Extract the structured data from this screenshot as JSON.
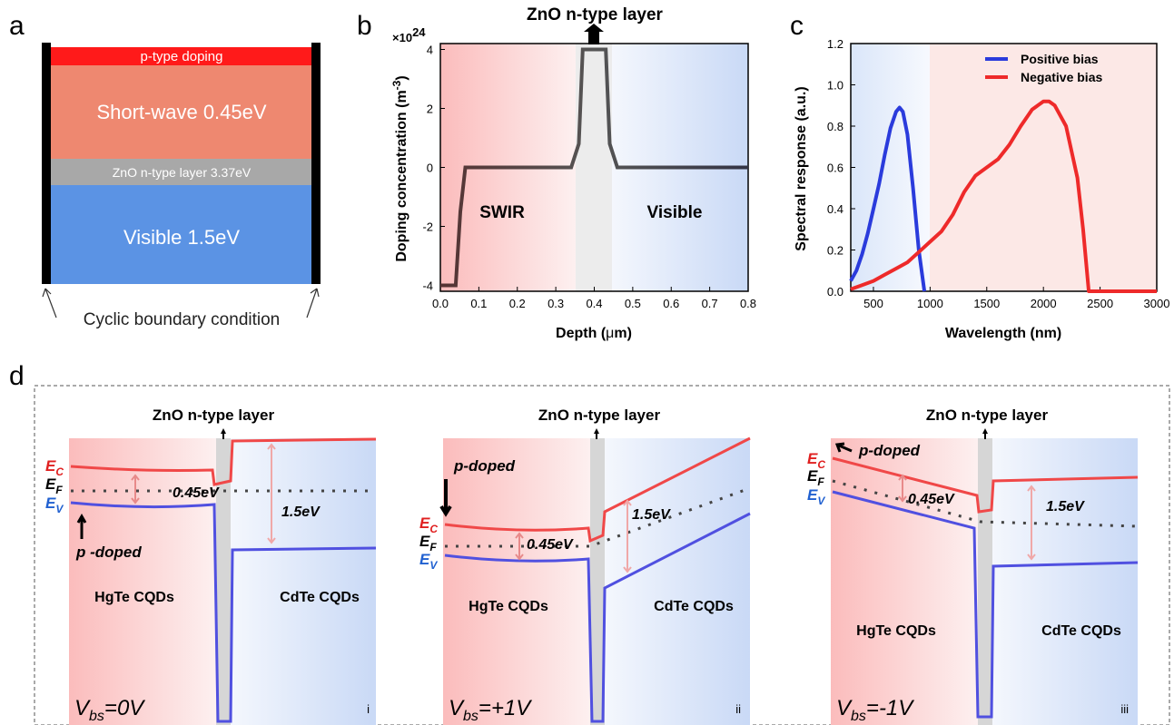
{
  "panels": {
    "a": {
      "label": "a",
      "layers": {
        "p_doping": "p-type doping",
        "short_wave": "Short-wave 0.45eV",
        "zno": "ZnO n-type layer 3.37eV",
        "visible": "Visible 1.5eV"
      },
      "caption": "Cyclic boundary condition",
      "colors": {
        "p_doping": "#ff1a1a",
        "short_wave": "#ee8870",
        "zno": "#a8a8a8",
        "visible": "#5b93e4",
        "boundary": "#000000"
      }
    },
    "b": {
      "label": "b",
      "top_annotation": "ZnO n-type layer",
      "region_left": "SWIR",
      "region_right": "Visible",
      "multiplier": "×10",
      "multiplier_exp": "24"
    },
    "c": {
      "label": "c"
    },
    "d": {
      "label": "d",
      "subpanels": [
        {
          "id": "i",
          "roman": "i",
          "title": "ZnO n-type layer",
          "vbs": "=0V",
          "left": "HgTe CQDs",
          "right": "CdTe CQDs",
          "gap_small": "0.45eV",
          "gap_large": "1.5eV",
          "pdoped": "p -doped"
        },
        {
          "id": "ii",
          "roman": "ii",
          "title": "ZnO n-type layer",
          "vbs": "=+1V",
          "left": "HgTe CQDs",
          "right": "CdTe CQDs",
          "gap_small": "0.45eV",
          "gap_large": "1.5eV",
          "pdoped": "p-doped"
        },
        {
          "id": "iii",
          "roman": "iii",
          "title": "ZnO n-type layer",
          "vbs": "=-1V",
          "left": "HgTe CQDs",
          "right": "CdTe CQDs",
          "gap_small": "0.45eV",
          "gap_large": "1.5eV",
          "pdoped": "p-doped"
        }
      ],
      "band_labels": {
        "ec": "E",
        "ec_sub": "C",
        "ef": "E",
        "ef_sub": "F",
        "ev": "E",
        "ev_sub": "V",
        "vbs": "V",
        "vbs_sub": "bs"
      },
      "colors": {
        "ec": "#f04848",
        "ev": "#5050e0",
        "ef": "#444444",
        "ec_label": "#e02020",
        "ev_label": "#2060d0"
      }
    }
  },
  "chart_data": [
    {
      "type": "line",
      "panel": "b",
      "xlabel": "Depth (μm)",
      "ylabel": "Doping concentration (m-3)",
      "xlim": [
        0.0,
        0.8
      ],
      "ylim": [
        -4.2,
        4.2
      ],
      "x_ticks": [
        0.0,
        0.1,
        0.2,
        0.3,
        0.4,
        0.5,
        0.6,
        0.7,
        0.8
      ],
      "y_ticks": [
        -4,
        -2,
        0,
        2,
        4
      ],
      "x_tick_labels": [
        "0.0",
        "0.1",
        "0.2",
        "0.3",
        "0.4",
        "0.5",
        "0.6",
        "0.7",
        "0.8"
      ],
      "y_tick_labels": [
        "-4",
        "-2",
        "0",
        "2",
        "4"
      ],
      "series": [
        {
          "x": [
            0.0,
            0.04,
            0.052,
            0.065,
            0.34,
            0.36,
            0.37,
            0.43,
            0.44,
            0.46,
            0.8
          ],
          "values": [
            -4,
            -4,
            -1.5,
            0,
            0,
            0.8,
            4,
            4,
            0.8,
            0,
            0
          ]
        }
      ],
      "grid": false
    },
    {
      "type": "line",
      "panel": "c",
      "xlabel": "Wavelength (nm)",
      "ylabel": "Spectral response (a.u.)",
      "xlim": [
        300,
        3000
      ],
      "ylim": [
        0.0,
        1.2
      ],
      "x_ticks": [
        500,
        1000,
        1500,
        2000,
        2500,
        3000
      ],
      "y_ticks": [
        0.0,
        0.2,
        0.4,
        0.6,
        0.8,
        1.0,
        1.2
      ],
      "x_tick_labels": [
        "500",
        "1000",
        "1500",
        "2000",
        "2500",
        "3000"
      ],
      "y_tick_labels": [
        "0.0",
        "0.2",
        "0.4",
        "0.6",
        "0.8",
        "1.0",
        "1.2"
      ],
      "legend": "top-right",
      "series": [
        {
          "name": "Positive bias",
          "color": "#2a3bdc",
          "x": [
            300,
            350,
            400,
            450,
            500,
            550,
            600,
            650,
            700,
            730,
            760,
            800,
            850,
            900,
            950
          ],
          "values": [
            0.05,
            0.1,
            0.18,
            0.28,
            0.4,
            0.52,
            0.66,
            0.79,
            0.87,
            0.89,
            0.87,
            0.76,
            0.5,
            0.2,
            0.0
          ]
        },
        {
          "name": "Negative bias",
          "color": "#ee2a2a",
          "x": [
            300,
            400,
            500,
            600,
            700,
            800,
            900,
            1000,
            1100,
            1200,
            1300,
            1400,
            1500,
            1600,
            1700,
            1800,
            1900,
            2000,
            2050,
            2100,
            2200,
            2300,
            2350,
            2400,
            3000
          ],
          "values": [
            0.01,
            0.03,
            0.05,
            0.08,
            0.11,
            0.14,
            0.19,
            0.24,
            0.29,
            0.37,
            0.48,
            0.56,
            0.6,
            0.64,
            0.71,
            0.8,
            0.88,
            0.92,
            0.92,
            0.9,
            0.8,
            0.55,
            0.3,
            0.0,
            0.0
          ]
        }
      ],
      "grid": false
    }
  ]
}
